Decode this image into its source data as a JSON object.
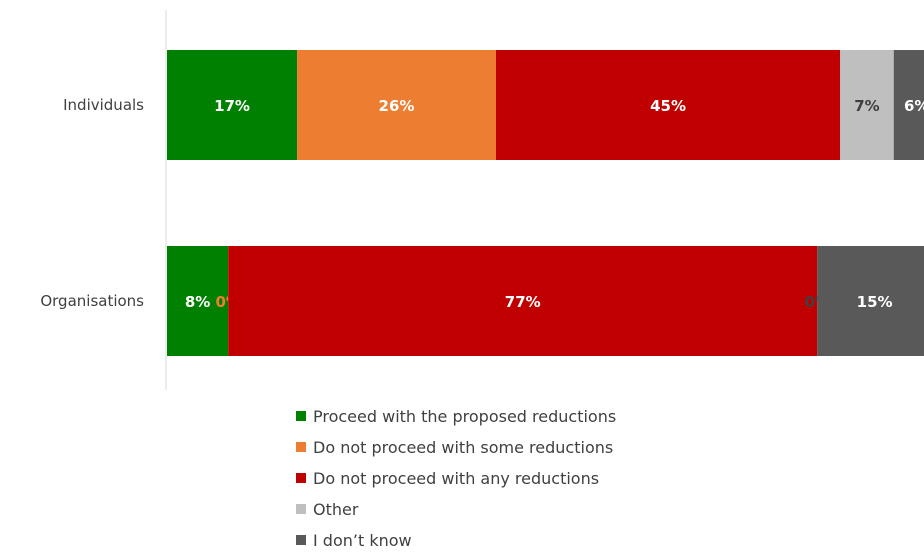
{
  "chart_data": {
    "type": "bar",
    "orientation": "horizontal",
    "stacked": true,
    "categories": [
      "Individuals",
      "Organisations"
    ],
    "series": [
      {
        "name": "Proceed with the proposed reductions",
        "values": [
          17,
          8
        ],
        "labels": [
          "17%",
          "8%"
        ],
        "color": "#008000"
      },
      {
        "name": "Do not proceed with some reductions",
        "values": [
          26,
          0
        ],
        "labels": [
          "26%",
          "0%"
        ],
        "color": "#ED7D31"
      },
      {
        "name": "Do not proceed with any reductions",
        "values": [
          45,
          77
        ],
        "labels": [
          "45%",
          "77%"
        ],
        "color": "#C00000"
      },
      {
        "name": "Other",
        "values": [
          7,
          0
        ],
        "labels": [
          "7%",
          "0%"
        ],
        "color": "#BFBFBF"
      },
      {
        "name": "I don’t know",
        "values": [
          6,
          15
        ],
        "labels": [
          "6%",
          "15%"
        ],
        "color": "#595959"
      }
    ],
    "xlim": [
      0,
      100
    ],
    "grid": false,
    "legend_position": "bottom"
  }
}
